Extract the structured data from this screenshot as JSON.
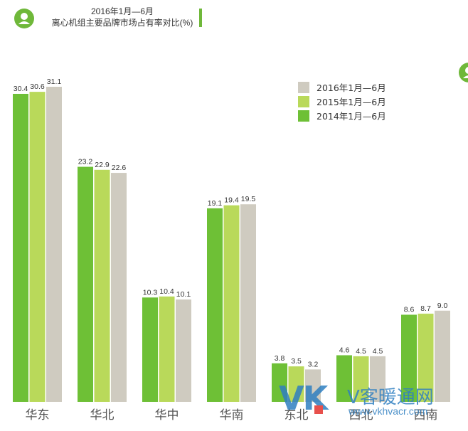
{
  "header": {
    "icon": "user-icon",
    "title_line1": "2016年1月—6月",
    "title_line2": "离心机组主要品牌市场占有率对比(%)",
    "accent": "#6fb83a"
  },
  "watermark": {
    "logo": "VK",
    "name": "V客暖通网",
    "url": "www.vkhvacr.com"
  },
  "chart_data": {
    "type": "bar",
    "title": "2016年1月—6月 离心机组主要品牌市场占有率对比(%)",
    "categories": [
      "华东",
      "华北",
      "华中",
      "华南",
      "东北",
      "西北",
      "西南"
    ],
    "series": [
      {
        "name": "2014年1月—6月",
        "color": "#6ec036",
        "values": [
          30.4,
          23.2,
          10.3,
          19.1,
          3.8,
          4.6,
          8.6
        ]
      },
      {
        "name": "2015年1月—6月",
        "color": "#b9d95a",
        "values": [
          30.6,
          22.9,
          10.4,
          19.4,
          3.5,
          4.5,
          8.7
        ]
      },
      {
        "name": "2016年1月—6月",
        "color": "#cfcbc0",
        "values": [
          31.1,
          22.6,
          10.1,
          19.5,
          3.2,
          4.5,
          9.0
        ]
      }
    ],
    "legend_order": [
      "2016年1月—6月",
      "2015年1月—6月",
      "2014年1月—6月"
    ],
    "legend_position": "top-right",
    "ylim": [
      0,
      31.1
    ],
    "grid": false
  }
}
